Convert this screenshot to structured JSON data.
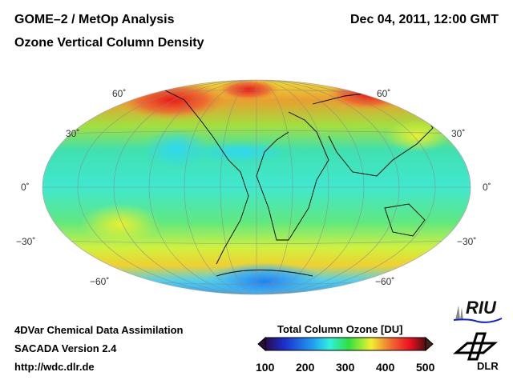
{
  "header": {
    "title_line1": "GOME–2 / MetOp Analysis",
    "title_line2": "Ozone Vertical Column Density",
    "datetime": "Dec 04, 2011, 12:00 GMT"
  },
  "map": {
    "projection": "Hammer-Aitoff world",
    "lat_labels_left": [
      "60˚",
      "30˚",
      "0˚",
      "−30˚",
      "−60˚"
    ],
    "lat_labels_right": [
      "60˚",
      "30˚",
      "0˚",
      "−30˚",
      "−60˚"
    ]
  },
  "footer": {
    "line1": "4DVar Chemical Data Assimilation",
    "line2": "SACADA Version 2.4",
    "line3": "http://wdc.dlr.de"
  },
  "colorbar": {
    "title": "Total Column Ozone [DU]",
    "min": 100,
    "max": 500,
    "ticks": [
      "100",
      "200",
      "300",
      "400",
      "500"
    ],
    "colors": [
      "#2a0a4a",
      "#1b2fd0",
      "#20a0f0",
      "#30f0e0",
      "#30e040",
      "#f0f030",
      "#f07030",
      "#f01020",
      "#501010"
    ]
  },
  "logos": {
    "riu": "RIU",
    "dlr": "DLR"
  }
}
